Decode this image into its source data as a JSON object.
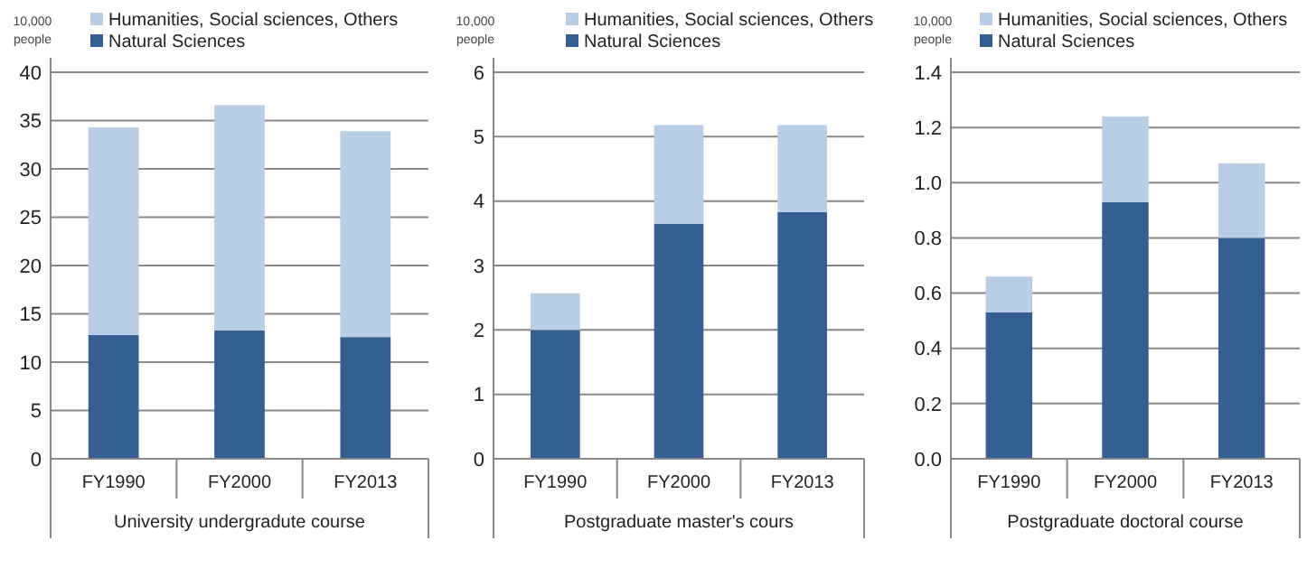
{
  "chart_data": [
    {
      "type": "bar",
      "stacked": true,
      "ylabel": "10,000 people",
      "xlabel": "University undergradute course",
      "categories": [
        "FY1990",
        "FY2000",
        "FY2013"
      ],
      "ylim": [
        0,
        40
      ],
      "yticks": [
        0,
        5,
        10,
        15,
        20,
        25,
        30,
        35,
        40
      ],
      "grid": "y",
      "legend": "top",
      "series": [
        {
          "name": "Natural Sciences",
          "color": "#365f91",
          "values": [
            12.8,
            13.3,
            12.6
          ]
        },
        {
          "name": "Humanities, Social sciences, Others",
          "color": "#b9cde5",
          "values": [
            21.5,
            23.3,
            21.3
          ]
        }
      ]
    },
    {
      "type": "bar",
      "stacked": true,
      "ylabel": "10,000 people",
      "xlabel": "Postgraduate master's cours",
      "categories": [
        "FY1990",
        "FY2000",
        "FY2013"
      ],
      "ylim": [
        0,
        6
      ],
      "yticks": [
        0,
        1,
        2,
        3,
        4,
        5,
        6
      ],
      "grid": "y",
      "legend": "top",
      "series": [
        {
          "name": "Natural Sciences",
          "color": "#365f91",
          "values": [
            2.0,
            3.65,
            3.83
          ]
        },
        {
          "name": "Humanities, Social sciences, Others",
          "color": "#b9cde5",
          "values": [
            0.57,
            1.53,
            1.35
          ]
        }
      ]
    },
    {
      "type": "bar",
      "stacked": true,
      "ylabel": "10,000 people",
      "xlabel": "Postgraduate doctoral course",
      "categories": [
        "FY1990",
        "FY2000",
        "FY2013"
      ],
      "ylim": [
        0,
        1.4
      ],
      "yticks": [
        {
          "value": 0,
          "label": "0.0"
        },
        0.2,
        0.4,
        0.6,
        0.8,
        {
          "value": 1,
          "label": "1.0"
        },
        1.2,
        1.4
      ],
      "grid": "y",
      "legend": "top",
      "series": [
        {
          "name": "Natural Sciences",
          "color": "#365f91",
          "values": [
            0.53,
            0.93,
            0.8
          ]
        },
        {
          "name": "Humanities, Social sciences, Others",
          "color": "#b9cde5",
          "values": [
            0.13,
            0.31,
            0.27
          ]
        }
      ]
    }
  ]
}
